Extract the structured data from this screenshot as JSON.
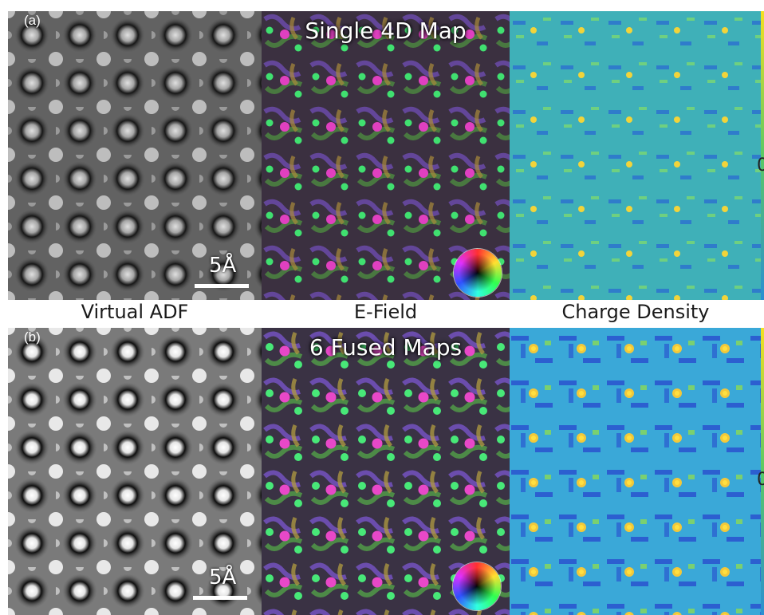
{
  "rows": [
    {
      "tag": "(a)",
      "efield_title": "Single 4D Map",
      "scale_label": "5Å",
      "cbar_tick": "0"
    },
    {
      "tag": "(b)",
      "efield_title": "6 Fused Maps",
      "scale_label": "5Å",
      "cbar_tick": "0"
    }
  ],
  "captions": {
    "adf": "Virtual ADF",
    "efield": "E-Field",
    "charge": "Charge Density"
  },
  "colors": {
    "adf_bg": "#5a5a5a",
    "efield_bg": "#3a2f3a",
    "charge_bg": "#2fa7c8",
    "charge_hot": "#f2d43a",
    "atom_pink": "#e040c0",
    "atom_green": "#40e070"
  }
}
